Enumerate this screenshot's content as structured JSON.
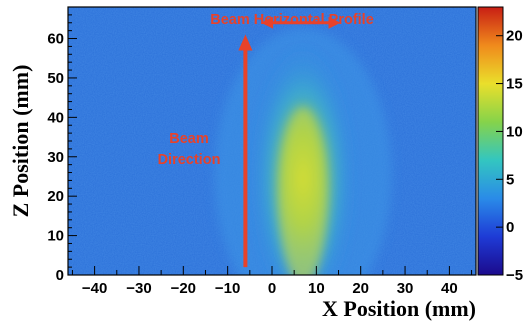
{
  "chart_data": {
    "type": "heatmap",
    "xlabel": "X Position (mm)",
    "ylabel": "Z Position (mm)",
    "xlim": [
      -46,
      46
    ],
    "ylim": [
      0,
      68
    ],
    "x_ticks": [
      -40,
      -30,
      -20,
      -10,
      0,
      10,
      20,
      30,
      40
    ],
    "y_ticks": [
      0,
      10,
      20,
      30,
      40,
      50,
      60
    ],
    "colorbar": {
      "range": [
        -5,
        23
      ],
      "ticks": [
        -5,
        0,
        5,
        10,
        15,
        20
      ],
      "colormap": [
        "#1b0a8c",
        "#1e3bd6",
        "#2a8be8",
        "#33c6c0",
        "#86d34a",
        "#eadf2b",
        "#f08a1c",
        "#c81e14"
      ]
    },
    "background_level": 1.3,
    "beam_band": {
      "x_center": 7,
      "x_fwhm_approx": 20,
      "peak_value": 11,
      "z_top_at_center": 60
    },
    "annotations": [
      {
        "text": "Beam Horizontal Profile",
        "color": "#e8422a"
      },
      {
        "text": "Beam",
        "color": "#e8422a"
      },
      {
        "text": "Direction",
        "color": "#e8422a"
      }
    ],
    "arrows": {
      "direction_arrow": {
        "x": -6,
        "z_from": 2,
        "z_to": 60,
        "color": "#e8422a"
      },
      "profile_arrow": {
        "x_from": -2,
        "x_to": 15,
        "z": 64,
        "color": "#e8422a"
      }
    }
  }
}
